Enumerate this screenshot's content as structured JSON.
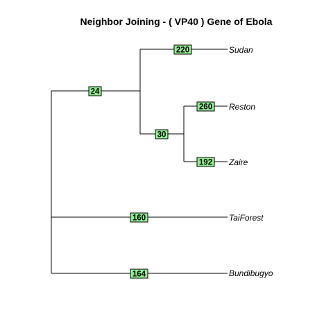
{
  "title": "Neighbor Joining - ( VP40 ) Gene of Ebola",
  "label_color": "#90EE90",
  "tree": {
    "tips": [
      {
        "id": "sudan",
        "label": "Sudan"
      },
      {
        "id": "reston",
        "label": "Reston"
      },
      {
        "id": "zaire",
        "label": "Zaire"
      },
      {
        "id": "taiforest",
        "label": "TaiForest"
      },
      {
        "id": "bundibugyo",
        "label": "Bundibugyo"
      }
    ],
    "edges": [
      {
        "id": "e-root-a",
        "label": "24"
      },
      {
        "id": "e-a-sudan",
        "label": "220"
      },
      {
        "id": "e-a-b",
        "label": "30"
      },
      {
        "id": "e-b-reston",
        "label": "260"
      },
      {
        "id": "e-b-zaire",
        "label": "192"
      },
      {
        "id": "e-root-taiforest",
        "label": "160"
      },
      {
        "id": "e-root-bundibugyo",
        "label": "164"
      }
    ]
  }
}
